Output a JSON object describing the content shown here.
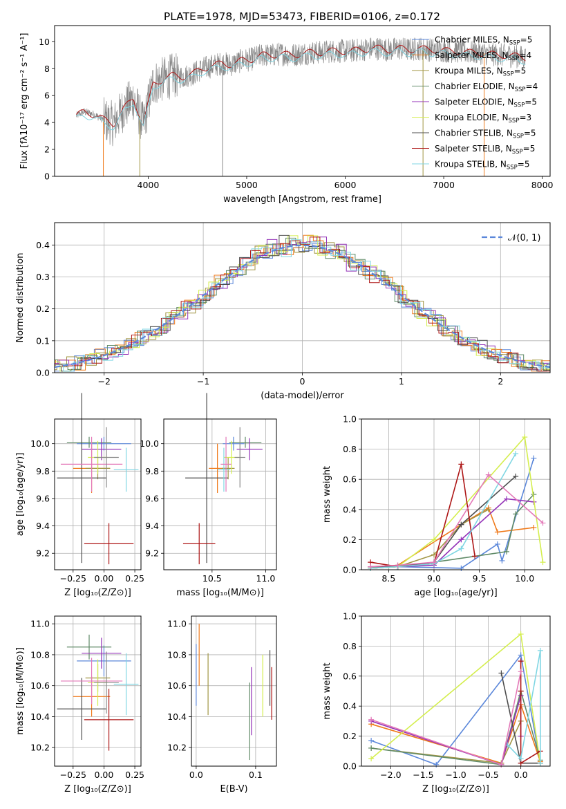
{
  "colors": {
    "palette": [
      "#5b87da",
      "#ef7a1b",
      "#a09442",
      "#5f8a67",
      "#9433b8",
      "#d4ee4e",
      "#4d4d4d",
      "#ad1515",
      "#7fd6e3",
      "#e378b8",
      "#888888"
    ]
  },
  "chart_data": [
    {
      "type": "line",
      "title": "PLATE=1978, MJD=53473, FIBERID=0106, z=0.172",
      "xlabel": "wavelength [Angstrom, rest frame]",
      "ylabel": "Flux [fλ10⁻¹⁷ erg cm⁻² s⁻¹ A⁻¹]",
      "xlim": [
        3050,
        8080
      ],
      "ylim": [
        0,
        11.2
      ],
      "xticks": [
        4000,
        5000,
        6000,
        7000,
        8000
      ],
      "yticks": [
        0,
        2,
        4,
        6,
        8,
        10
      ],
      "grid": false,
      "legend_position": "top-right",
      "spectrum": {
        "x": [
          3270,
          3350,
          3450,
          3550,
          3650,
          3750,
          3850,
          3950,
          4050,
          4150,
          4250,
          4350,
          4450,
          4550,
          4650,
          4750,
          4850,
          4950,
          5050,
          5150,
          5250,
          5350,
          5450,
          5550,
          5650,
          5750,
          5850,
          5950,
          6050,
          6150,
          6250,
          6350,
          6450,
          6550,
          6650,
          6750,
          6850,
          6950,
          7050,
          7150,
          7250,
          7350,
          7450,
          7550,
          7650,
          7750,
          7830
        ],
        "y": [
          4.5,
          4.8,
          4.6,
          4.2,
          3.9,
          5.0,
          5.8,
          3.8,
          6.9,
          7.2,
          7.5,
          7.4,
          7.6,
          8.0,
          8.2,
          8.4,
          8.3,
          8.6,
          8.7,
          9.0,
          9.0,
          9.1,
          9.0,
          9.1,
          9.2,
          9.2,
          9.3,
          9.3,
          9.3,
          9.4,
          9.5,
          9.5,
          9.4,
          9.5,
          9.4,
          9.5,
          9.4,
          9.4,
          9.3,
          9.3,
          9.2,
          9.2,
          9.1,
          9.0,
          9.0,
          8.9,
          8.8
        ]
      },
      "series": [
        {
          "name": "Chabrier MILES, N_SSP=5"
        },
        {
          "name": "Salpeter MILES, N_SSP=4"
        },
        {
          "name": "Kroupa MILES, N_SSP=5"
        },
        {
          "name": "Chabrier ELODIE, N_SSP=4"
        },
        {
          "name": "Salpeter ELODIE, N_SSP=5"
        },
        {
          "name": "Kroupa ELODIE, N_SSP=3"
        },
        {
          "name": "Chabrier STELIB, N_SSP=5"
        },
        {
          "name": "Salpeter STELIB, N_SSP=5"
        },
        {
          "name": "Kroupa STELIB, N_SSP=5"
        }
      ],
      "legend": [
        "Chabrier MILES, N_SSP=5",
        "Salpeter MILES, N_SSP=4",
        "Kroupa MILES, N_SSP=5",
        "Chabrier ELODIE, N_SSP=4",
        "Salpeter ELODIE, N_SSP=5",
        "Kroupa ELODIE, N_SSP=3",
        "Chabrier STELIB, N_SSP=5",
        "Salpeter STELIB, N_SSP=5",
        "Kroupa STELIB, N_SSP=5"
      ]
    },
    {
      "type": "line",
      "xlabel": "(data-model)/error",
      "ylabel": "Normed distribution",
      "xlim": [
        -2.5,
        2.5
      ],
      "ylim": [
        0,
        0.47
      ],
      "xticks": [
        -2,
        -1,
        0,
        1,
        2
      ],
      "yticks": [
        0.0,
        0.1,
        0.2,
        0.3,
        0.4
      ],
      "grid": true,
      "legend": [
        "𝒩(0, 1)"
      ],
      "legend_position": "top-right",
      "curve": {
        "name": "𝒩(0, 1)",
        "mu": 0,
        "sigma": 1
      }
    },
    {
      "type": "scatter",
      "xlabel": "Z [log₁₀(Z/Z⊙)]",
      "ylabel": "age  [log₁₀(age/yr)]",
      "xlim": [
        -0.4,
        0.3
      ],
      "ylim": [
        9.08,
        10.18
      ],
      "xticks": [
        -0.25,
        0.0,
        0.25
      ],
      "yticks": [
        9.2,
        9.4,
        9.6,
        9.8,
        10.0
      ],
      "grid": true,
      "points": [
        {
          "x": 0.0,
          "y": 10.0,
          "xerr": 0.22,
          "yerr": 0.05
        },
        {
          "x": -0.1,
          "y": 9.82,
          "xerr": 0.15,
          "yerr": 0.18
        },
        {
          "x": -0.05,
          "y": 9.82,
          "xerr": 0.1,
          "yerr": 0.08
        },
        {
          "x": -0.12,
          "y": 10.01,
          "xerr": 0.18,
          "yerr": 0.04
        },
        {
          "x": -0.02,
          "y": 9.96,
          "xerr": 0.16,
          "yerr": 0.08
        },
        {
          "x": -0.05,
          "y": 9.9,
          "xerr": 0.08,
          "yerr": 0.12
        },
        {
          "x": -0.18,
          "y": 9.75,
          "xerr": 0.2,
          "yerr": 0.62
        },
        {
          "x": 0.04,
          "y": 9.27,
          "xerr": 0.2,
          "yerr": 0.15
        },
        {
          "x": 0.18,
          "y": 9.81,
          "xerr": 0.1,
          "yerr": 0.16
        },
        {
          "x": -0.1,
          "y": 9.85,
          "xerr": 0.25,
          "yerr": 0.2
        },
        {
          "x": 0.02,
          "y": 9.9,
          "xerr": 0.1,
          "yerr": 0.22
        }
      ]
    },
    {
      "type": "scatter",
      "xlabel": "mass [log₁₀(M/M⊙)]",
      "ylabel": "",
      "xlim": [
        10.05,
        11.1
      ],
      "ylim": [
        9.08,
        10.18
      ],
      "xticks": [
        10.5,
        11.0
      ],
      "yticks": [
        9.2,
        9.4,
        9.6,
        9.8,
        10.0
      ],
      "grid": true,
      "points": [
        {
          "x": 10.7,
          "y": 10.0,
          "xerr": 0.1,
          "yerr": 0.05
        },
        {
          "x": 10.55,
          "y": 9.82,
          "xerr": 0.08,
          "yerr": 0.18
        },
        {
          "x": 10.65,
          "y": 9.82,
          "xerr": 0.06,
          "yerr": 0.08
        },
        {
          "x": 10.81,
          "y": 10.01,
          "xerr": 0.15,
          "yerr": 0.04
        },
        {
          "x": 10.85,
          "y": 9.96,
          "xerr": 0.12,
          "yerr": 0.08
        },
        {
          "x": 10.68,
          "y": 9.9,
          "xerr": 0.07,
          "yerr": 0.12
        },
        {
          "x": 10.45,
          "y": 9.75,
          "xerr": 0.2,
          "yerr": 0.62
        },
        {
          "x": 10.38,
          "y": 9.27,
          "xerr": 0.15,
          "yerr": 0.15
        },
        {
          "x": 10.61,
          "y": 9.81,
          "xerr": 0.06,
          "yerr": 0.16
        },
        {
          "x": 10.63,
          "y": 9.85,
          "xerr": 0.05,
          "yerr": 0.2
        },
        {
          "x": 10.76,
          "y": 9.9,
          "xerr": 0.05,
          "yerr": 0.22
        }
      ]
    },
    {
      "type": "line",
      "xlabel": "age  [log₁₀(age/yr)]",
      "ylabel": "mass weight",
      "xlim": [
        8.2,
        10.28
      ],
      "ylim": [
        0,
        1.0
      ],
      "xticks": [
        8.5,
        9.0,
        9.5,
        10.0
      ],
      "yticks": [
        0.0,
        0.2,
        0.4,
        0.6,
        0.8,
        1.0
      ],
      "grid": true,
      "series": [
        {
          "x": [
            8.3,
            8.6,
            9.3,
            9.7,
            9.75,
            10.1
          ],
          "y": [
            0.01,
            0.02,
            0.01,
            0.17,
            0.06,
            0.74
          ]
        },
        {
          "x": [
            8.3,
            8.6,
            9.3,
            9.6,
            9.7,
            10.1
          ],
          "y": [
            0.02,
            0.03,
            0.3,
            0.41,
            0.25,
            0.28
          ]
        },
        {
          "x": [
            8.3,
            8.6,
            9.0,
            9.3,
            9.6
          ],
          "y": [
            0.01,
            0.02,
            0.1,
            0.3,
            0.4
          ]
        },
        {
          "x": [
            8.3,
            8.6,
            9.0,
            9.8,
            9.9,
            10.1
          ],
          "y": [
            0.01,
            0.02,
            0.05,
            0.12,
            0.37,
            0.5
          ]
        },
        {
          "x": [
            8.3,
            8.6,
            9.0,
            9.3,
            9.8,
            10.1
          ],
          "y": [
            0.01,
            0.02,
            0.03,
            0.2,
            0.47,
            0.45
          ]
        },
        {
          "x": [
            8.3,
            8.6,
            9.0,
            10.0,
            10.2
          ],
          "y": [
            0.01,
            0.02,
            0.2,
            0.88,
            0.05
          ]
        },
        {
          "x": [
            8.3,
            8.6,
            9.0,
            9.3,
            9.9
          ],
          "y": [
            0.02,
            0.02,
            0.05,
            0.3,
            0.62
          ]
        },
        {
          "x": [
            8.3,
            8.6,
            9.0,
            9.3,
            9.45
          ],
          "y": [
            0.05,
            0.02,
            0.04,
            0.7,
            0.09
          ]
        },
        {
          "x": [
            8.3,
            8.6,
            9.0,
            9.3,
            9.9
          ],
          "y": [
            0.01,
            0.02,
            0.04,
            0.14,
            0.77
          ]
        },
        {
          "x": [
            8.3,
            8.6,
            9.0,
            9.6,
            10.2
          ],
          "y": [
            0.02,
            0.03,
            0.05,
            0.63,
            0.31
          ]
        }
      ]
    },
    {
      "type": "scatter",
      "xlabel": "Z [log₁₀(Z/Z⊙)]",
      "ylabel": "mass [log₁₀(M/M⊙)]",
      "xlim": [
        -0.4,
        0.3
      ],
      "ylim": [
        10.08,
        11.05
      ],
      "xticks": [
        -0.25,
        0.0,
        0.25
      ],
      "yticks": [
        10.2,
        10.4,
        10.6,
        10.8,
        11.0
      ],
      "grid": true,
      "points": [
        {
          "x": 0.0,
          "y": 10.76,
          "xerr": 0.22,
          "yerr": 0.1
        },
        {
          "x": -0.1,
          "y": 10.53,
          "xerr": 0.15,
          "yerr": 0.13
        },
        {
          "x": -0.05,
          "y": 10.65,
          "xerr": 0.1,
          "yerr": 0.09
        },
        {
          "x": -0.12,
          "y": 10.85,
          "xerr": 0.18,
          "yerr": 0.08
        },
        {
          "x": -0.02,
          "y": 10.81,
          "xerr": 0.16,
          "yerr": 0.1
        },
        {
          "x": -0.05,
          "y": 10.62,
          "xerr": 0.08,
          "yerr": 0.15
        },
        {
          "x": -0.18,
          "y": 10.45,
          "xerr": 0.2,
          "yerr": 0.2
        },
        {
          "x": 0.04,
          "y": 10.38,
          "xerr": 0.2,
          "yerr": 0.2
        },
        {
          "x": 0.18,
          "y": 10.61,
          "xerr": 0.1,
          "yerr": 0.2
        },
        {
          "x": -0.1,
          "y": 10.63,
          "xerr": 0.25,
          "yerr": 0.15
        },
        {
          "x": 0.02,
          "y": 10.62,
          "xerr": 0.1,
          "yerr": 0.2
        }
      ]
    },
    {
      "type": "scatter",
      "xlabel": "E(B-V)",
      "ylabel": "",
      "xlim": [
        -0.008,
        0.135
      ],
      "ylim": [
        10.08,
        11.05
      ],
      "xticks": [
        0.0,
        0.1
      ],
      "yticks": [
        10.2,
        10.4,
        10.6,
        10.8,
        11.0
      ],
      "grid": true,
      "points": [
        {
          "x": 0.0,
          "y": 10.67,
          "yerr": 0.2
        },
        {
          "x": 0.005,
          "y": 10.8,
          "yerr": 0.2
        },
        {
          "x": 0.02,
          "y": 10.61,
          "yerr": 0.2
        },
        {
          "x": 0.09,
          "y": 10.37,
          "yerr": 0.25
        },
        {
          "x": 0.093,
          "y": 10.5,
          "yerr": 0.22
        },
        {
          "x": 0.112,
          "y": 10.6,
          "yerr": 0.2
        },
        {
          "x": 0.124,
          "y": 10.65,
          "yerr": 0.18
        },
        {
          "x": 0.127,
          "y": 10.55,
          "yerr": 0.17
        }
      ]
    },
    {
      "type": "line",
      "xlabel": "Z [log₁₀(Z/Z⊙)]",
      "ylabel": "mass weight",
      "xlim": [
        -2.45,
        0.45
      ],
      "ylim": [
        0,
        1.0
      ],
      "xticks": [
        -2.0,
        -1.5,
        -1.0,
        -0.5,
        0.0
      ],
      "yticks": [
        0.0,
        0.2,
        0.4,
        0.6,
        0.8,
        1.0
      ],
      "grid": true,
      "series": [
        {
          "x": [
            -2.3,
            -1.3,
            0.0,
            0.3
          ],
          "y": [
            0.17,
            0.01,
            0.74,
            0.02
          ]
        },
        {
          "x": [
            -2.3,
            -0.3,
            0.0,
            0.3
          ],
          "y": [
            0.28,
            0.02,
            0.41,
            0.03
          ]
        },
        {
          "x": [
            -2.3,
            -0.3,
            0.0
          ],
          "y": [
            0.12,
            0.02,
            0.3
          ]
        },
        {
          "x": [
            -2.3,
            -0.3,
            0.0,
            0.3
          ],
          "y": [
            0.12,
            0.01,
            0.5,
            0.04
          ]
        },
        {
          "x": [
            -2.3,
            -0.3,
            0.0,
            0.0
          ],
          "y": [
            0.3,
            0.01,
            0.47,
            0.2
          ]
        },
        {
          "x": [
            -2.3,
            0.0,
            0.3
          ],
          "y": [
            0.05,
            0.88,
            0.02
          ]
        },
        {
          "x": [
            -0.3,
            0.0,
            0.3
          ],
          "y": [
            0.62,
            0.02,
            0.02
          ]
        },
        {
          "x": [
            0.0,
            0.0,
            0.0,
            0.3
          ],
          "y": [
            0.7,
            0.5,
            0.02,
            0.1
          ]
        },
        {
          "x": [
            -0.2,
            0.0,
            0.3,
            0.3
          ],
          "y": [
            0.14,
            0.05,
            0.77,
            0.02
          ]
        },
        {
          "x": [
            -2.3,
            -0.3,
            0.0
          ],
          "y": [
            0.31,
            0.01,
            0.63
          ]
        }
      ]
    }
  ]
}
